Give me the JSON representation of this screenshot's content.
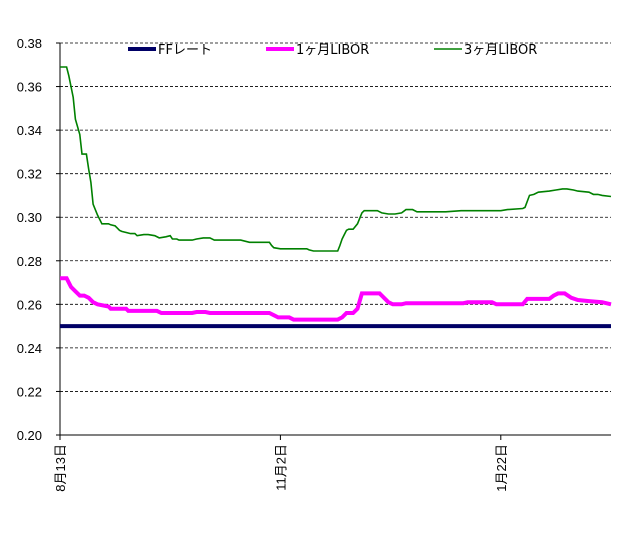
{
  "chart_data": {
    "type": "line",
    "title": "",
    "xlabel": "",
    "ylabel": "",
    "ylim": [
      0.2,
      0.38
    ],
    "y_ticks": [
      "0.38",
      "0.36",
      "0.34",
      "0.32",
      "0.30",
      "0.28",
      "0.26",
      "0.24",
      "0.22",
      "0.20"
    ],
    "y_tick_values": [
      0.38,
      0.36,
      0.34,
      0.32,
      0.3,
      0.28,
      0.26,
      0.24,
      0.22,
      0.2
    ],
    "x_range": [
      0,
      250
    ],
    "x_ticks": [
      {
        "label": "8月13日",
        "x": 0
      },
      {
        "label": "11月2日",
        "x": 100
      },
      {
        "label": "1月22日",
        "x": 200
      }
    ],
    "grid": true,
    "legend_position": "top",
    "series": [
      {
        "name": "FFレート",
        "color": "#000066",
        "points": [
          [
            0,
            0.25
          ],
          [
            250,
            0.25
          ]
        ]
      },
      {
        "name": "1ヶ月LIBOR",
        "color": "#ff00ff",
        "points": [
          [
            0,
            0.272
          ],
          [
            3,
            0.272
          ],
          [
            5,
            0.268
          ],
          [
            7,
            0.266
          ],
          [
            9,
            0.264
          ],
          [
            11,
            0.264
          ],
          [
            13,
            0.263
          ],
          [
            15,
            0.261
          ],
          [
            17,
            0.26
          ],
          [
            22,
            0.259
          ],
          [
            23,
            0.258
          ],
          [
            30,
            0.258
          ],
          [
            31,
            0.257
          ],
          [
            44,
            0.257
          ],
          [
            46,
            0.256
          ],
          [
            60,
            0.256
          ],
          [
            62,
            0.2565
          ],
          [
            66,
            0.2565
          ],
          [
            68,
            0.256
          ],
          [
            95,
            0.256
          ],
          [
            97,
            0.255
          ],
          [
            99,
            0.254
          ],
          [
            104,
            0.254
          ],
          [
            106,
            0.253
          ],
          [
            126,
            0.253
          ],
          [
            128,
            0.254
          ],
          [
            130,
            0.256
          ],
          [
            133,
            0.256
          ],
          [
            135,
            0.258
          ],
          [
            137,
            0.265
          ],
          [
            145,
            0.265
          ],
          [
            147,
            0.263
          ],
          [
            149,
            0.261
          ],
          [
            151,
            0.26
          ],
          [
            155,
            0.26
          ],
          [
            157,
            0.2605
          ],
          [
            183,
            0.2605
          ],
          [
            185,
            0.261
          ],
          [
            196,
            0.261
          ],
          [
            198,
            0.26
          ],
          [
            210,
            0.26
          ],
          [
            212,
            0.2625
          ],
          [
            222,
            0.2625
          ],
          [
            224,
            0.264
          ],
          [
            226,
            0.265
          ],
          [
            229,
            0.265
          ],
          [
            232,
            0.263
          ],
          [
            235,
            0.262
          ],
          [
            240,
            0.2615
          ],
          [
            246,
            0.261
          ],
          [
            250,
            0.26
          ]
        ]
      },
      {
        "name": "3ヶ月LIBOR",
        "color": "#008000",
        "points": [
          [
            0,
            0.369
          ],
          [
            3,
            0.369
          ],
          [
            4,
            0.365
          ],
          [
            6,
            0.355
          ],
          [
            7,
            0.345
          ],
          [
            9,
            0.338
          ],
          [
            10,
            0.329
          ],
          [
            12,
            0.329
          ],
          [
            13,
            0.322
          ],
          [
            14,
            0.316
          ],
          [
            15,
            0.306
          ],
          [
            17,
            0.301
          ],
          [
            18,
            0.299
          ],
          [
            19,
            0.297
          ],
          [
            21,
            0.297
          ],
          [
            22,
            0.297
          ],
          [
            23,
            0.2965
          ],
          [
            25,
            0.296
          ],
          [
            26,
            0.295
          ],
          [
            27,
            0.294
          ],
          [
            28,
            0.2935
          ],
          [
            32,
            0.2925
          ],
          [
            34,
            0.2925
          ],
          [
            35,
            0.2915
          ],
          [
            38,
            0.292
          ],
          [
            40,
            0.292
          ],
          [
            43,
            0.2915
          ],
          [
            45,
            0.2905
          ],
          [
            48,
            0.291
          ],
          [
            50,
            0.2915
          ],
          [
            51,
            0.29
          ],
          [
            53,
            0.29
          ],
          [
            54,
            0.2895
          ],
          [
            58,
            0.2895
          ],
          [
            60,
            0.2895
          ],
          [
            62,
            0.29
          ],
          [
            65,
            0.2905
          ],
          [
            68,
            0.2905
          ],
          [
            70,
            0.2895
          ],
          [
            75,
            0.2895
          ],
          [
            82,
            0.2895
          ],
          [
            86,
            0.2885
          ],
          [
            95,
            0.2885
          ],
          [
            96,
            0.287
          ],
          [
            97,
            0.286
          ],
          [
            100,
            0.2855
          ],
          [
            112,
            0.2855
          ],
          [
            113,
            0.285
          ],
          [
            115,
            0.2845
          ],
          [
            126,
            0.2845
          ],
          [
            127,
            0.287
          ],
          [
            128,
            0.29
          ],
          [
            129,
            0.292
          ],
          [
            130,
            0.294
          ],
          [
            131,
            0.2945
          ],
          [
            133,
            0.2945
          ],
          [
            135,
            0.297
          ],
          [
            137,
            0.302
          ],
          [
            138,
            0.303
          ],
          [
            144,
            0.303
          ],
          [
            146,
            0.302
          ],
          [
            149,
            0.3015
          ],
          [
            152,
            0.3015
          ],
          [
            155,
            0.302
          ],
          [
            157,
            0.3035
          ],
          [
            160,
            0.3035
          ],
          [
            162,
            0.3025
          ],
          [
            175,
            0.3025
          ],
          [
            182,
            0.303
          ],
          [
            190,
            0.303
          ],
          [
            200,
            0.303
          ],
          [
            203,
            0.3035
          ],
          [
            210,
            0.304
          ],
          [
            211,
            0.3045
          ],
          [
            213,
            0.31
          ],
          [
            215,
            0.3105
          ],
          [
            217,
            0.3115
          ],
          [
            222,
            0.312
          ],
          [
            225,
            0.3125
          ],
          [
            228,
            0.313
          ],
          [
            230,
            0.313
          ],
          [
            233,
            0.3125
          ],
          [
            235,
            0.312
          ],
          [
            240,
            0.3115
          ],
          [
            242,
            0.3105
          ],
          [
            244,
            0.3105
          ],
          [
            246,
            0.31
          ],
          [
            250,
            0.3095
          ]
        ]
      }
    ]
  }
}
